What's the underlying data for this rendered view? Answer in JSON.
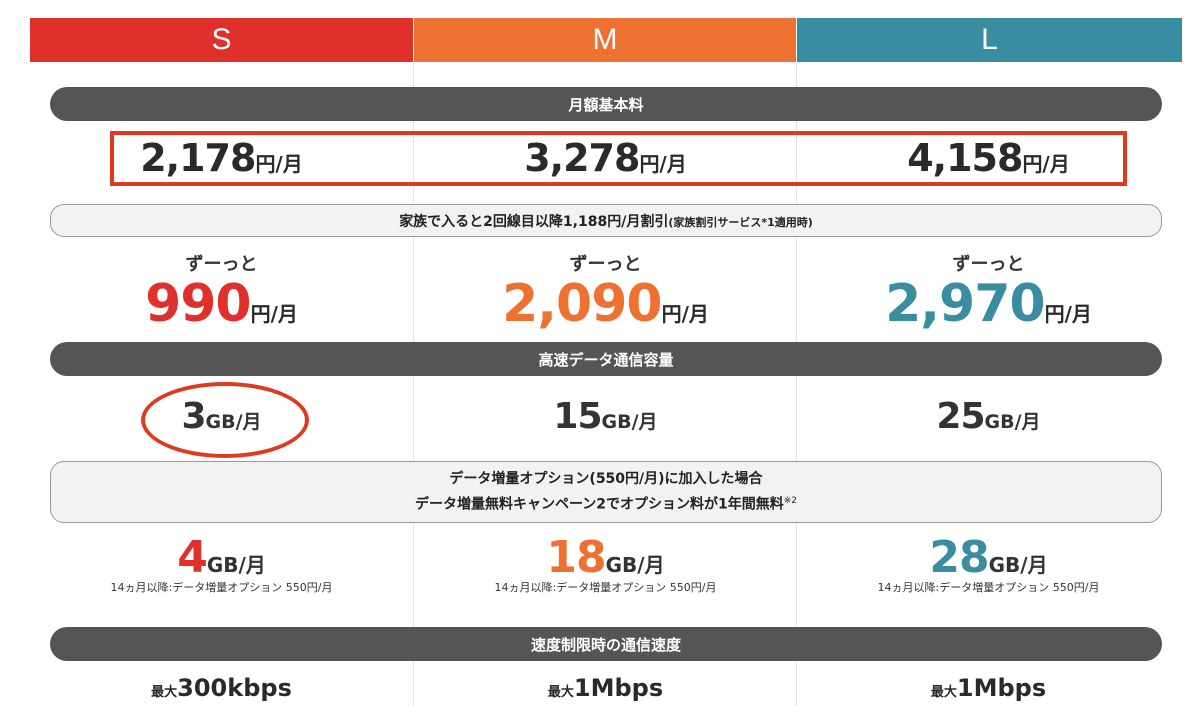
{
  "plans": [
    {
      "name": "S",
      "color": "#e0302b"
    },
    {
      "name": "M",
      "color": "#ef7131"
    },
    {
      "name": "L",
      "color": "#3a8da0"
    }
  ],
  "sections": {
    "monthly_fee": "月額基本料",
    "family_discount": {
      "main": "家族で入ると2回線目以降1,188円/月割引",
      "note": "(家族割引サービス*1適用時)"
    },
    "data_capacity": "高速データ通信容量",
    "data_option": {
      "line1": "データ増量オプション(550円/月)に加入した場合",
      "line2": "データ増量無料キャンペーン2でオプション料が1年間無料",
      "mark": "※2"
    },
    "speed_limit": "速度制限時の通信速度"
  },
  "prices": [
    {
      "amount": "2,178",
      "unit": "円/月"
    },
    {
      "amount": "3,278",
      "unit": "円/月"
    },
    {
      "amount": "4,158",
      "unit": "円/月"
    }
  ],
  "discounted": [
    {
      "label": "ずーっと",
      "amount": "990",
      "unit": "円/月"
    },
    {
      "label": "ずーっと",
      "amount": "2,090",
      "unit": "円/月"
    },
    {
      "label": "ずーっと",
      "amount": "2,970",
      "unit": "円/月"
    }
  ],
  "data": [
    {
      "amount": "3",
      "unit": "GB/月"
    },
    {
      "amount": "15",
      "unit": "GB/月"
    },
    {
      "amount": "25",
      "unit": "GB/月"
    }
  ],
  "extra_data": [
    {
      "amount": "4",
      "unit": "GB/月",
      "note": "14ヵ月以降:データ増量オプション 550円/月"
    },
    {
      "amount": "18",
      "unit": "GB/月",
      "note": "14ヵ月以降:データ増量オプション 550円/月"
    },
    {
      "amount": "28",
      "unit": "GB/月",
      "note": "14ヵ月以降:データ増量オプション 550円/月"
    }
  ],
  "speeds": [
    {
      "prefix": "最大",
      "value": "300kbps"
    },
    {
      "prefix": "最大",
      "value": "1Mbps"
    },
    {
      "prefix": "最大",
      "value": "1Mbps"
    }
  ],
  "colors": {
    "text_dark": "#2a2a2a",
    "highlight": "#e03a1e",
    "pill_dark": "#555555"
  }
}
